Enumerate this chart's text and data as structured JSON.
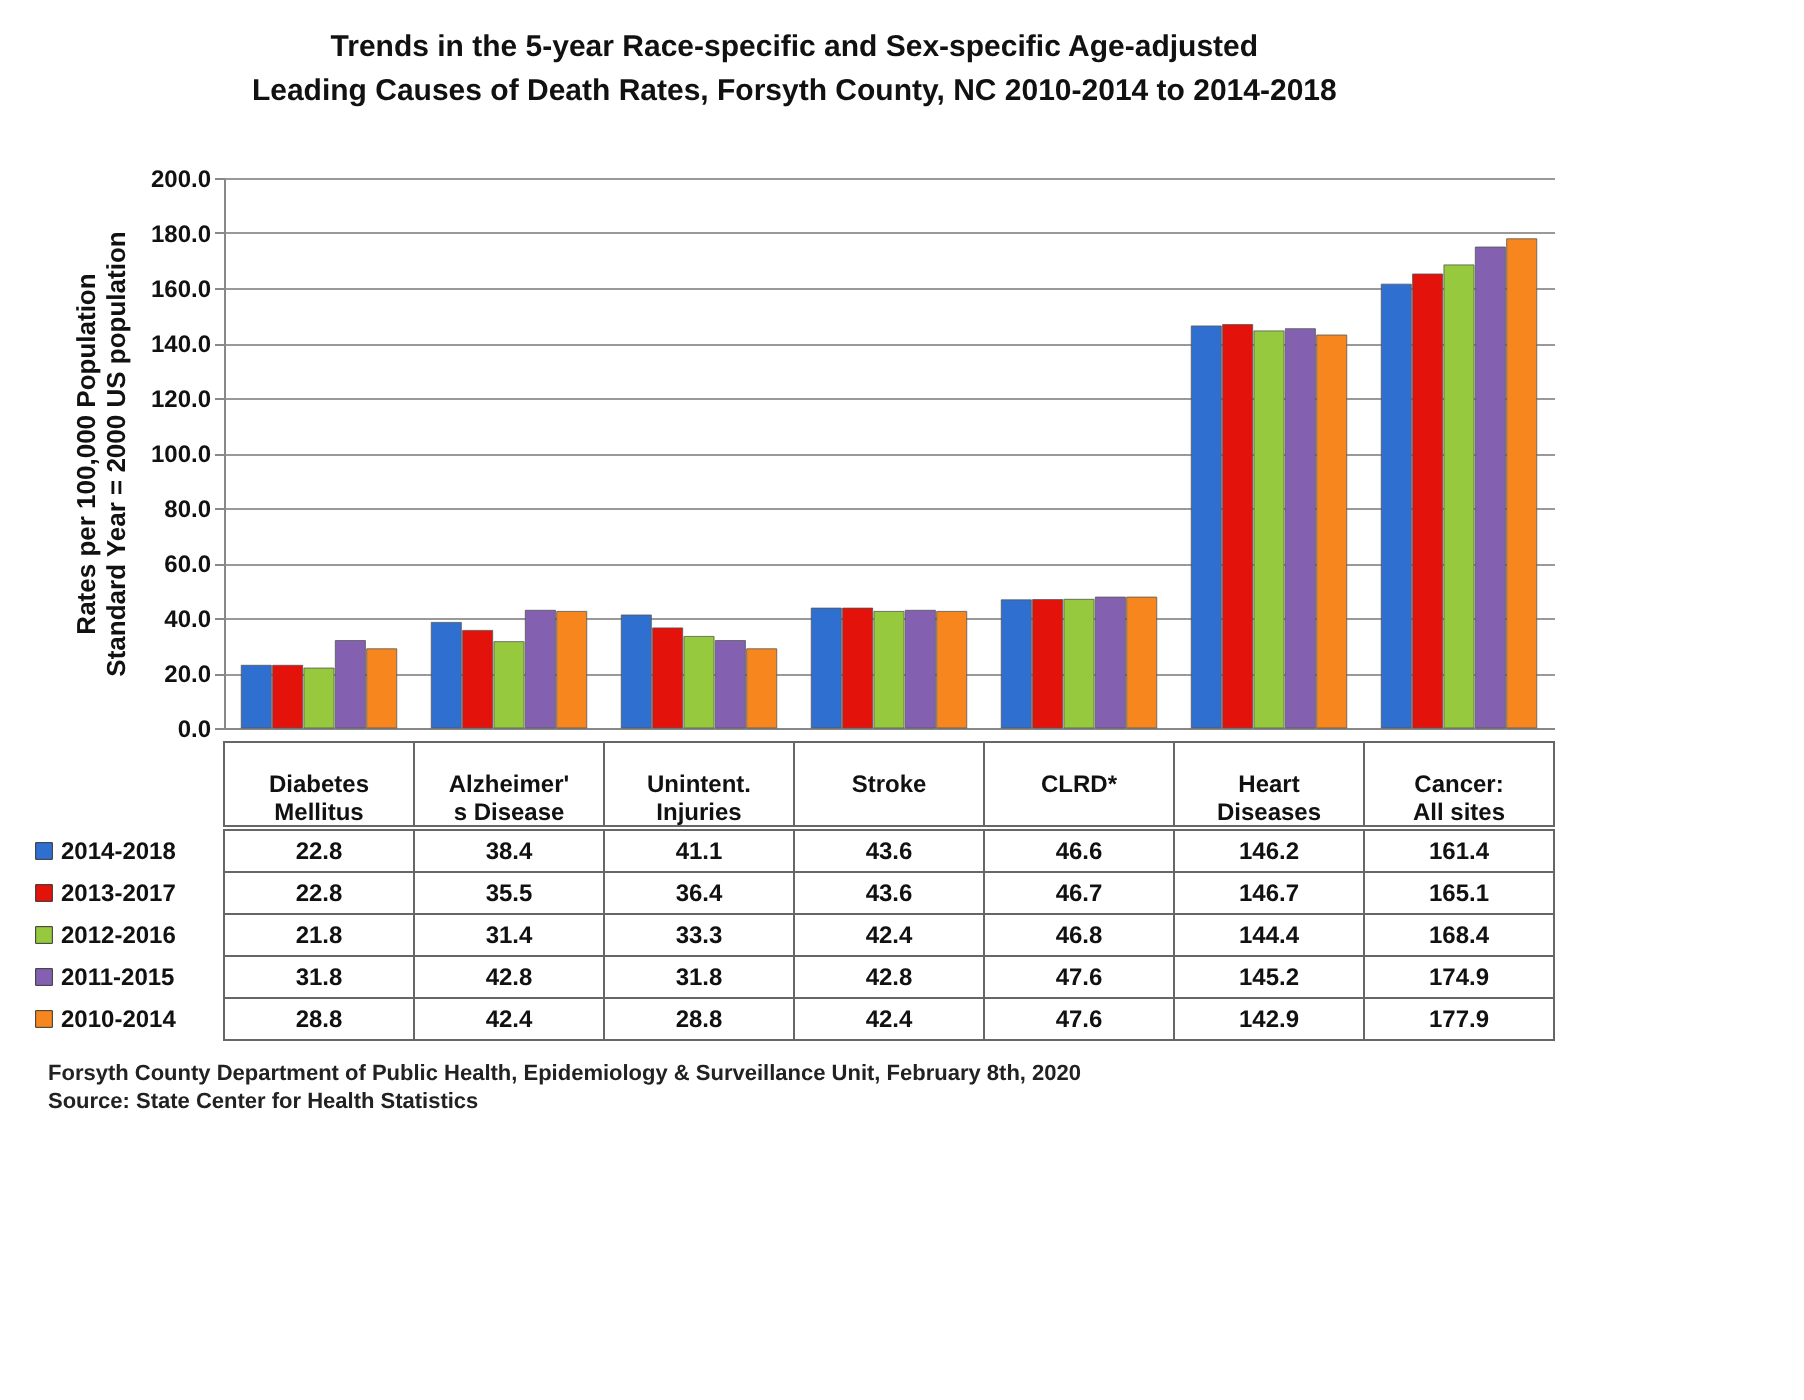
{
  "chart_data": {
    "type": "bar",
    "title": "Trends in the 5-year Race-specific and Sex-specific Age-adjusted\nLeading Causes of Death Rates, Forsyth County, NC 2010-2014 to 2014-2018",
    "ylabel": "Rates per 100,000 Population\nStandard Year = 2000 US population",
    "categories": [
      "Diabetes Mellitus",
      "Alzheimer' s Disease",
      "Unintent. Injuries",
      "Stroke",
      "CLRD*",
      "Heart Diseases",
      "Cancer: All sites"
    ],
    "series": [
      {
        "name": "2014-2018",
        "color": "#2f6fcf",
        "values": [
          22.8,
          38.4,
          41.1,
          43.6,
          46.6,
          146.2,
          161.4
        ]
      },
      {
        "name": "2013-2017",
        "color": "#e3120b",
        "values": [
          22.8,
          35.5,
          36.4,
          43.6,
          46.7,
          146.7,
          165.1
        ]
      },
      {
        "name": "2012-2016",
        "color": "#96c93d",
        "values": [
          21.8,
          31.4,
          33.3,
          42.4,
          46.8,
          144.4,
          168.4
        ]
      },
      {
        "name": "2011-2015",
        "color": "#8461b0",
        "values": [
          31.8,
          42.8,
          31.8,
          42.8,
          47.6,
          145.2,
          174.9
        ]
      },
      {
        "name": "2010-2014",
        "color": "#f7861f",
        "values": [
          28.8,
          42.4,
          28.8,
          42.4,
          47.6,
          142.9,
          177.9
        ]
      }
    ],
    "ylim": [
      0,
      200
    ],
    "yticks": [
      {
        "value": 0,
        "label": "0.0"
      },
      {
        "value": 20,
        "label": "20.0"
      },
      {
        "value": 40,
        "label": "40.0"
      },
      {
        "value": 60,
        "label": "60.0"
      },
      {
        "value": 80,
        "label": "80.0"
      },
      {
        "value": 100,
        "label": "100.0"
      },
      {
        "value": 120,
        "label": "120.0"
      },
      {
        "value": 140,
        "label": "140.0"
      },
      {
        "value": 160,
        "label": "160.0"
      },
      {
        "value": 180,
        "label": "180.0"
      },
      {
        "value": 200,
        "label": "200.0"
      }
    ],
    "grid": "y",
    "legend": "bottom",
    "data_labels": true,
    "annotations": [
      "Forsyth County Department of Public Health, Epidemiology & Surveillance Unit, February 8th, 2020",
      "Source: State Center for Health Statistics"
    ]
  }
}
